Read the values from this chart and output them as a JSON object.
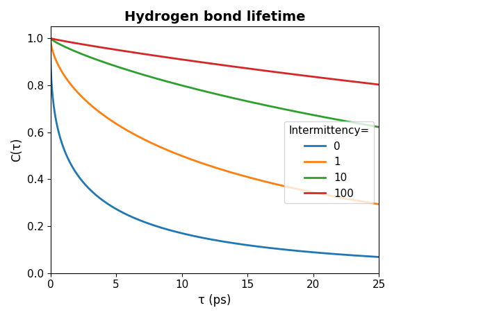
{
  "title": "Hydrogen bond lifetime",
  "xlabel": "τ (ps)",
  "ylabel": "C(τ)",
  "xlim": [
    0,
    25
  ],
  "ylim": [
    0.0,
    1.05
  ],
  "legend_title": "Intermittency=",
  "series": [
    {
      "label": "0",
      "color": "#1f77b4",
      "tau": 2.8,
      "beta": 0.45
    },
    {
      "label": "1",
      "color": "#ff7f0e",
      "tau": 18.0,
      "beta": 0.62
    },
    {
      "label": "10",
      "color": "#2ca02c",
      "tau": 62.0,
      "beta": 0.82
    },
    {
      "label": "100",
      "color": "#d62728",
      "tau": 130.0,
      "beta": 0.92
    }
  ],
  "title_fontsize": 14,
  "title_fontweight": "bold",
  "legend_fontsize": 11,
  "axis_fontsize": 12,
  "tick_fontsize": 11,
  "linewidth": 2.0,
  "figsize": [
    6.95,
    4.57
  ],
  "dpi": 100
}
